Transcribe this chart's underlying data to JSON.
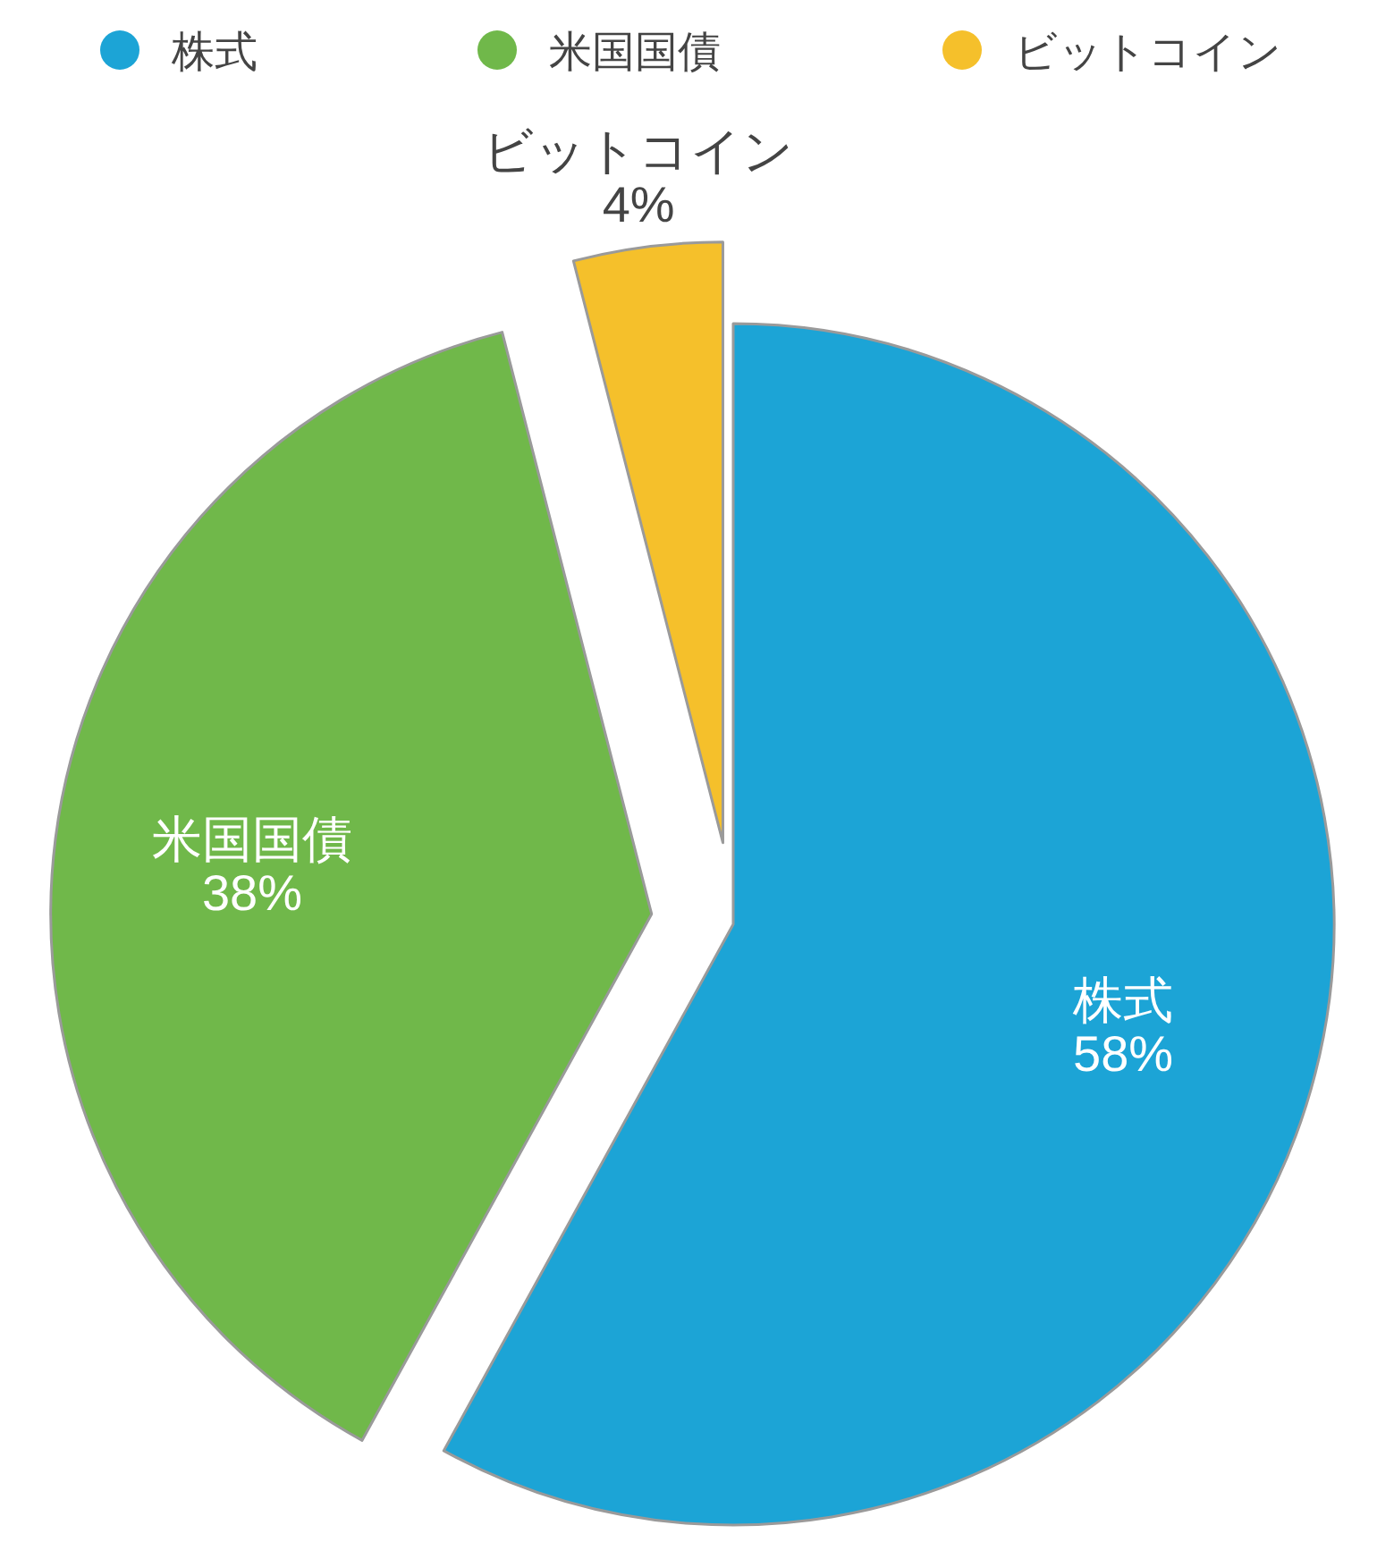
{
  "chart_data": {
    "type": "pie",
    "categories": [
      "株式",
      "米国国債",
      "ビットコイン"
    ],
    "values": [
      58,
      38,
      4
    ],
    "colors": [
      "#1ca4d6",
      "#70b84a",
      "#f5c02b"
    ],
    "value_labels": [
      "58%",
      "38%",
      "4%"
    ],
    "legend": "top"
  }
}
